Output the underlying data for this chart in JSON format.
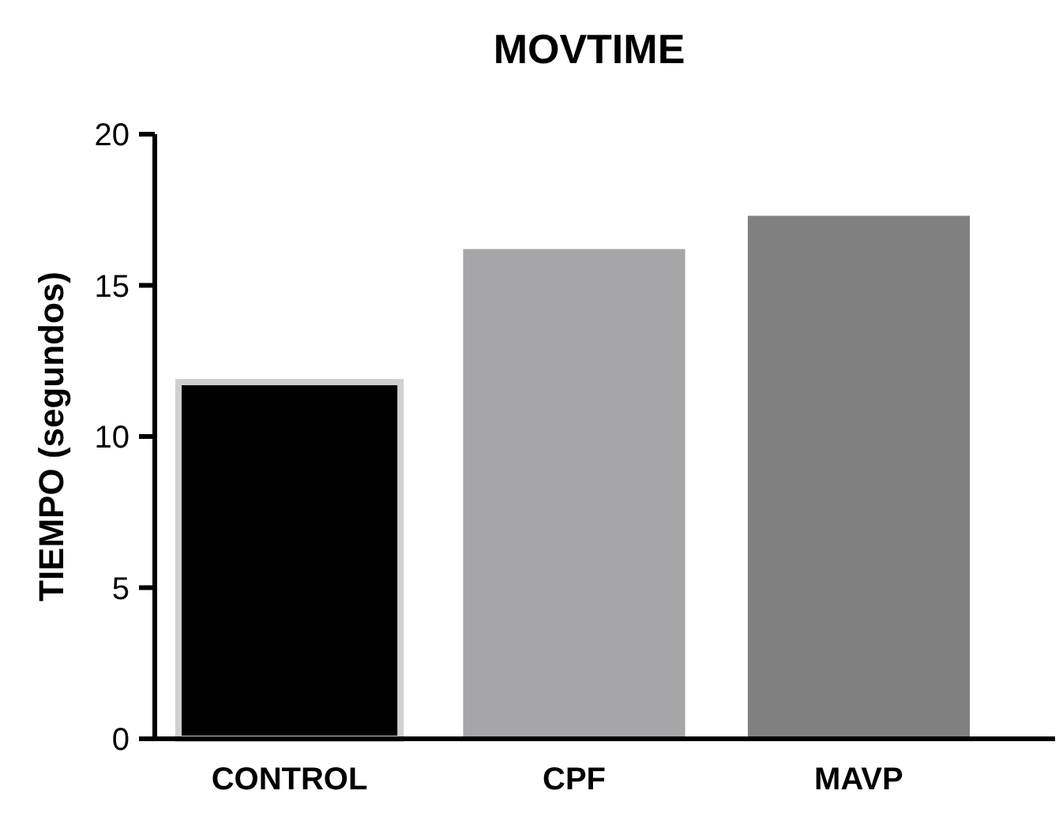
{
  "chart_data": {
    "type": "bar",
    "title": "MOVTIME",
    "ylabel": "TIEMPO (segundos)",
    "categories": [
      "CONTROL",
      "CPF",
      "MAVP"
    ],
    "values": [
      11.8,
      16.2,
      17.3
    ],
    "colors": [
      "#000000",
      "#a6a6a8",
      "#808080"
    ],
    "ylim": [
      0,
      20
    ],
    "yticks": [
      0,
      5,
      10,
      15,
      20
    ],
    "grid": false
  }
}
